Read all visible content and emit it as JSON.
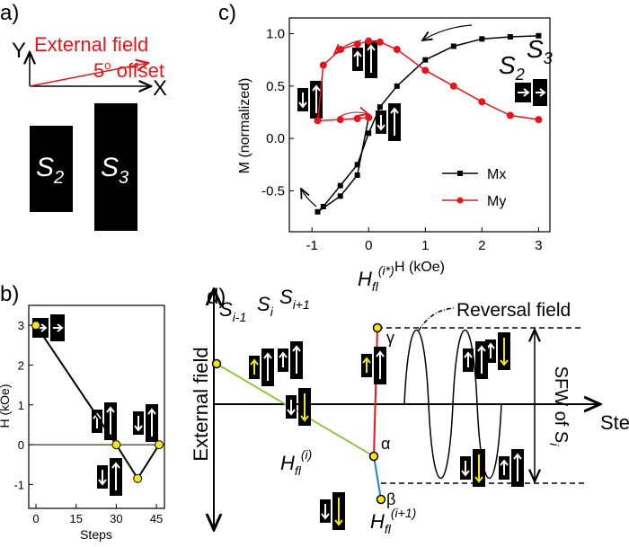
{
  "chart_data": [
    {
      "type": "line",
      "panel": "c)",
      "xlabel": "H (kOe)",
      "ylabel": "M (normalized)",
      "x": [
        3,
        2.5,
        2,
        1.5,
        1,
        0.5,
        0.2,
        0,
        -0.2,
        -0.5,
        -0.8,
        -0.9,
        -0.5,
        -0.2,
        0
      ],
      "series": [
        {
          "name": "Mx",
          "color": "#000000",
          "marker": "square",
          "values": [
            0.98,
            0.97,
            0.95,
            0.88,
            0.75,
            0.5,
            0.3,
            0.05,
            -0.25,
            -0.45,
            -0.65,
            -0.7,
            -0.55,
            -0.35,
            0.2
          ]
        },
        {
          "name": "My",
          "color": "#e8141c",
          "marker": "circle",
          "values": [
            0.18,
            0.22,
            0.35,
            0.5,
            0.65,
            0.85,
            0.92,
            0.93,
            0.9,
            0.85,
            0.7,
            0.17,
            0.18,
            0.19,
            0.2
          ]
        }
      ],
      "xlim": [
        -1.4,
        3.2
      ],
      "xticks": [
        -1,
        0,
        1,
        2,
        3
      ],
      "ylim": [
        -0.89,
        1.15
      ],
      "yticks": [
        -0.5,
        {
          "value": 0,
          "label": "0.0"
        },
        0.5,
        {
          "value": 1,
          "label": "1.0"
        }
      ],
      "legend": "lower right",
      "annotation": {
        "s2": "S",
        "s2_sub": "2",
        "s3": "S",
        "s3_sub": "3"
      }
    },
    {
      "type": "line",
      "panel": "b)",
      "xlabel": "Steps",
      "ylabel": "H (kOe)",
      "x": [
        0,
        30,
        38,
        46
      ],
      "series": [
        {
          "color": "#000000",
          "marker": "circle",
          "marker_color": "#f5e41a",
          "values": [
            3,
            0,
            -0.85,
            0
          ]
        }
      ],
      "xlim": [
        -2.7,
        48
      ],
      "xticks": [
        0,
        15,
        30,
        45
      ],
      "ylim": [
        -1.6,
        3.5
      ],
      "yticks": [
        -1,
        0,
        1,
        2,
        3
      ]
    }
  ],
  "panel_a": {
    "label": "a)",
    "y_axis": "Y",
    "x_axis": "X",
    "field": "External field",
    "offset_angle": "5",
    "offset_degree": "o",
    "offset_text": " offset",
    "s2": "S",
    "s2_sub": "2",
    "s3": "S",
    "s3_sub": "3"
  },
  "panel_d": {
    "label": "d)",
    "y_axis": "External field",
    "x_axis": "Step",
    "s_prev": "S",
    "s_prev_sub": "i-1",
    "s_cur": "S",
    "s_cur_sub": "i",
    "s_next": "S",
    "s_next_sub": "i+1",
    "h_star": "H",
    "h_star_sub": "fl",
    "h_star_sup": "(i*)",
    "h_i": "H",
    "h_i_sub": "fl",
    "h_i_sup": "(i)",
    "h_next": "H",
    "h_next_sub": "fl",
    "h_next_sup": "(i+1)",
    "reversal": "Reversal field",
    "gamma": "γ",
    "alpha": "α",
    "beta": "β",
    "sfw": "SFW of S",
    "sfw_sub": "i"
  }
}
